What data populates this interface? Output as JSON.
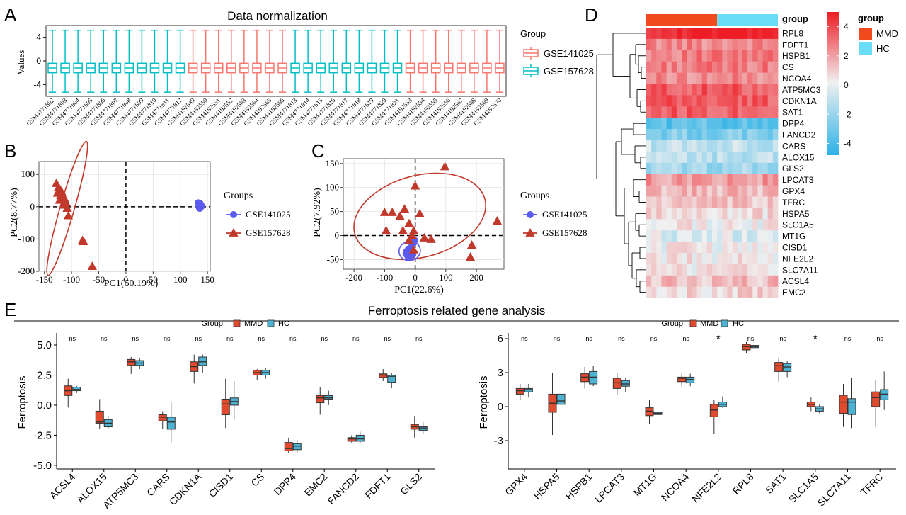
{
  "panel_labels": [
    "A",
    "B",
    "C",
    "D",
    "E"
  ],
  "colors": {
    "gse141025": "#F8766D",
    "gse157628": "#00BFC4",
    "mmd": "#E04A2E",
    "hc": "#4EB3D3",
    "pca_blue": "#5B5BF0",
    "pca_red": "#C0392B",
    "heat_high": "#EE1C25",
    "heat_mid": "#F0F0F0",
    "heat_low": "#2DB2E6",
    "mmd_bar": "#F14A1E",
    "hc_bar": "#6ADCF5"
  },
  "chart_data": [
    {
      "id": "A",
      "type": "boxplot",
      "title": "Data normalization",
      "ylabel": "Values",
      "yticks": [
        "4",
        "0",
        "-4"
      ],
      "ylim": [
        -6,
        6
      ],
      "legend_title": "Group",
      "legend": [
        "GSE141025",
        "GSE157628"
      ],
      "box": {
        "lower_whisker": -5.3,
        "q1": -2.0,
        "median": -1.2,
        "q3": -0.4,
        "upper_whisker": 5.2
      },
      "categories": [
        "GSM4771802",
        "GSM4771803",
        "GSM4771804",
        "GSM4771805",
        "GSM4771806",
        "GSM4771807",
        "GSM4771808",
        "GSM4771809",
        "GSM4771810",
        "GSM4771811",
        "GSM4771812",
        "GSM4192549",
        "GSM4192550",
        "GSM4192551",
        "GSM4192552",
        "GSM4192563",
        "GSM4192564",
        "GSM4192565",
        "GSM4192566",
        "GSM4771813",
        "GSM4771814",
        "GSM4771815",
        "GSM4771816",
        "GSM4771817",
        "GSM4771818",
        "GSM4771819",
        "GSM4771820",
        "GSM4771821",
        "GSM4192553",
        "GSM4192554",
        "GSM4192555",
        "GSM4192556",
        "GSM4192567",
        "GSM4192568",
        "GSM4192569",
        "GSM4192570"
      ],
      "groups": [
        "GSE157628",
        "GSE157628",
        "GSE157628",
        "GSE157628",
        "GSE157628",
        "GSE157628",
        "GSE157628",
        "GSE157628",
        "GSE157628",
        "GSE157628",
        "GSE157628",
        "GSE141025",
        "GSE141025",
        "GSE141025",
        "GSE141025",
        "GSE141025",
        "GSE141025",
        "GSE141025",
        "GSE141025",
        "GSE157628",
        "GSE157628",
        "GSE157628",
        "GSE157628",
        "GSE157628",
        "GSE157628",
        "GSE157628",
        "GSE157628",
        "GSE157628",
        "GSE141025",
        "GSE141025",
        "GSE141025",
        "GSE141025",
        "GSE141025",
        "GSE141025",
        "GSE141025",
        "GSE141025"
      ]
    },
    {
      "id": "B",
      "type": "scatter",
      "xlabel": "PC1(60.19%)",
      "ylabel": "PC2(8.77%)",
      "xlim": [
        -160,
        155
      ],
      "ylim": [
        -200,
        140
      ],
      "xticks": [
        -150,
        -100,
        -50,
        0,
        50,
        100,
        150
      ],
      "yticks": [
        100,
        0,
        -100,
        -200
      ],
      "legend_title": "Groups",
      "legend": [
        "GSE141025",
        "GSE157628"
      ],
      "series": [
        {
          "name": "GSE141025",
          "x": [
            134,
            136,
            138,
            135,
            137,
            139,
            133,
            136
          ],
          "y": [
            10,
            5,
            0,
            -3,
            8,
            2,
            12,
            -5
          ]
        },
        {
          "name": "GSE157628",
          "x": [
            -128,
            -124,
            -120,
            -126,
            -118,
            -116,
            -112,
            -122,
            -110,
            -114,
            -108,
            -106,
            -120,
            -115,
            -80,
            -78,
            -62
          ],
          "y": [
            72,
            60,
            50,
            42,
            45,
            32,
            22,
            20,
            12,
            5,
            -5,
            -28,
            35,
            28,
            -105,
            -108,
            -185
          ]
        }
      ],
      "ellipses": [
        {
          "series": "GSE157628",
          "cx": -108,
          "cy": -5,
          "rx": 128,
          "ry": 22,
          "angle": -74
        },
        {
          "series": "GSE141025",
          "cx": 136,
          "cy": 3,
          "rx": 7,
          "ry": 16,
          "angle": 0
        }
      ]
    },
    {
      "id": "C",
      "type": "scatter",
      "xlabel": "PC1(22.6%)",
      "ylabel": "PC2(7.92%)",
      "xlim": [
        -235,
        290
      ],
      "ylim": [
        -70,
        160
      ],
      "xticks": [
        -200,
        -100,
        0,
        100,
        200
      ],
      "yticks": [
        150,
        100,
        50,
        0,
        -50
      ],
      "legend_title": "Groups",
      "legend": [
        "GSE141025",
        "GSE157628"
      ],
      "series": [
        {
          "name": "GSE141025",
          "x": [
            -28,
            -22,
            -18,
            -12,
            -8,
            -25,
            -15,
            -20,
            -5,
            -30,
            -10,
            -2
          ],
          "y": [
            -33,
            -28,
            -37,
            -30,
            -40,
            -42,
            -25,
            -45,
            -15,
            -38,
            -32,
            -10
          ]
        },
        {
          "name": "GSE157628",
          "x": [
            97,
            0,
            -100,
            -75,
            -50,
            -35,
            -20,
            15,
            -5,
            -95,
            -10,
            -40,
            30,
            52,
            185,
            180,
            268,
            -20,
            -5
          ],
          "y": [
            143,
            103,
            48,
            48,
            40,
            55,
            25,
            45,
            10,
            10,
            0,
            10,
            -5,
            -8,
            -20,
            -45,
            30,
            -10,
            -30
          ]
        }
      ],
      "ellipses": [
        {
          "series": "GSE157628",
          "cx": 15,
          "cy": 40,
          "rx": 220,
          "ry": 85,
          "angle": -15
        },
        {
          "series": "GSE141025",
          "cx": -18,
          "cy": -32,
          "rx": 35,
          "ry": 20,
          "angle": -10
        }
      ]
    },
    {
      "id": "D",
      "type": "heatmap",
      "annotation_title": "group",
      "legend_title": "group",
      "groups": [
        "MMD",
        "HC"
      ],
      "color_scale": {
        "ticks": [
          "4",
          "2",
          "0",
          "-2",
          "-4"
        ],
        "range": [
          -4.8,
          5
        ]
      },
      "rows": [
        "RPL8",
        "FDFT1",
        "HSPB1",
        "CS",
        "NCOA4",
        "ATP5MC3",
        "CDKN1A",
        "SAT1",
        "DPP4",
        "FANCD2",
        "CARS",
        "ALOX15",
        "GLS2",
        "LPCAT3",
        "GPX4",
        "TFRC",
        "HSPA5",
        "SLC1A5",
        "MT1G",
        "CISD1",
        "NFE2L2",
        "SLC7A11",
        "ACSL4",
        "EMC2"
      ],
      "row_means": [
        5.0,
        2.5,
        2.7,
        2.7,
        2.4,
        3.5,
        3.5,
        3.5,
        -3.6,
        -2.7,
        -1.1,
        -1.4,
        -1.9,
        2.0,
        1.3,
        0.9,
        0.5,
        0.1,
        -0.5,
        0.1,
        0.2,
        0.3,
        1.2,
        0.6
      ],
      "columns": {
        "MMD": 14,
        "HC": 12
      }
    },
    {
      "id": "E",
      "type": "boxplot",
      "title": "Ferroptosis related gene analysis",
      "ylabel": "Ferroptosis",
      "legend_title": "Group",
      "legend": [
        "MMD",
        "HC"
      ],
      "panels": [
        {
          "ylim": [
            -5.3,
            6.0
          ],
          "yticks": [
            "5.0",
            "2.5",
            "0.0",
            "-2.5",
            "-5.0"
          ],
          "categories": [
            "ACSL4",
            "ALOX15",
            "ATP5MC3",
            "CARS",
            "CDKN1A",
            "CISD1",
            "CS",
            "DPP4",
            "EMC2",
            "FANCD2",
            "FDFT1",
            "GLS2"
          ],
          "significance": [
            "ns",
            "ns",
            "ns",
            "ns",
            "ns",
            "ns",
            "ns",
            "ns",
            "ns",
            "ns",
            "ns",
            "ns"
          ],
          "series": [
            {
              "name": "MMD",
              "boxes": [
                [
                  -0.2,
                  0.8,
                  1.2,
                  1.6,
                  2.2
                ],
                [
                  -2.0,
                  -1.5,
                  -1.4,
                  -0.5,
                  0.5
                ],
                [
                  2.6,
                  3.3,
                  3.6,
                  3.8,
                  4.0
                ],
                [
                  -2.0,
                  -1.3,
                  -1.0,
                  -0.8,
                  -0.5
                ],
                [
                  1.8,
                  2.8,
                  3.2,
                  3.6,
                  4.2
                ],
                [
                  -1.9,
                  -0.8,
                  0.1,
                  0.5,
                  2.2
                ],
                [
                  2.1,
                  2.5,
                  2.7,
                  2.9,
                  3.0
                ],
                [
                  -4.0,
                  -3.8,
                  -3.6,
                  -3.1,
                  -2.7
                ],
                [
                  -0.8,
                  0.2,
                  0.6,
                  0.8,
                  1.5
                ],
                [
                  -3.1,
                  -3.0,
                  -2.8,
                  -2.7,
                  -2.5
                ],
                [
                  2.0,
                  2.3,
                  2.5,
                  2.6,
                  3.0
                ],
                [
                  -2.7,
                  -2.0,
                  -1.8,
                  -1.6,
                  -0.9
                ]
              ]
            },
            {
              "name": "HC",
              "boxes": [
                [
                  1.0,
                  1.2,
                  1.3,
                  1.5,
                  1.6
                ],
                [
                  -2.0,
                  -1.8,
                  -1.5,
                  -1.2,
                  -0.9
                ],
                [
                  3.0,
                  3.3,
                  3.5,
                  3.7,
                  3.9
                ],
                [
                  -3.1,
                  -2.0,
                  -1.4,
                  -1.0,
                  0.3
                ],
                [
                  2.7,
                  3.3,
                  3.6,
                  4.0,
                  4.2
                ],
                [
                  -1.2,
                  0.0,
                  0.3,
                  0.6,
                  2.0
                ],
                [
                  2.2,
                  2.5,
                  2.7,
                  2.9,
                  3.1
                ],
                [
                  -4.0,
                  -3.7,
                  -3.4,
                  -3.2,
                  -2.9
                ],
                [
                  0.0,
                  0.5,
                  0.6,
                  0.8,
                  1.2
                ],
                [
                  -3.2,
                  -3.0,
                  -2.8,
                  -2.5,
                  -2.2
                ],
                [
                  1.4,
                  1.9,
                  2.4,
                  2.5,
                  2.7
                ],
                [
                  -2.4,
                  -2.1,
                  -1.9,
                  -1.8,
                  -1.4
                ]
              ]
            }
          ]
        },
        {
          "ylim": [
            -5.5,
            6.5
          ],
          "yticks": [
            "6",
            "3",
            "0",
            "-3"
          ],
          "categories": [
            "GPX4",
            "HSPA5",
            "HSPB1",
            "LPCAT3",
            "MT1G",
            "NCOA4",
            "NFE2L2",
            "RPL8",
            "SAT1",
            "SLC1A5",
            "SLC7A11",
            "TFRC"
          ],
          "significance": [
            "ns",
            "ns",
            "ns",
            "ns",
            "ns",
            "ns",
            "*",
            "ns",
            "ns",
            "*",
            "ns",
            "ns"
          ],
          "series": [
            {
              "name": "MMD",
              "boxes": [
                [
                  0.6,
                  1.1,
                  1.4,
                  1.6,
                  2.0
                ],
                [
                  -2.5,
                  -0.5,
                  0.3,
                  1.1,
                  3.0
                ],
                [
                  1.6,
                  2.2,
                  2.6,
                  2.9,
                  3.5
                ],
                [
                  1.0,
                  1.6,
                  2.1,
                  2.5,
                  3.0
                ],
                [
                  -1.5,
                  -0.8,
                  -0.4,
                  -0.1,
                  0.6
                ],
                [
                  1.8,
                  2.2,
                  2.5,
                  2.6,
                  2.9
                ],
                [
                  -2.4,
                  -0.9,
                  -0.3,
                  0.2,
                  0.6
                ],
                [
                  4.7,
                  5.0,
                  5.3,
                  5.5,
                  5.7
                ],
                [
                  2.2,
                  3.1,
                  3.6,
                  3.9,
                  4.3
                ],
                [
                  -0.4,
                  0.0,
                  0.2,
                  0.4,
                  0.8
                ],
                [
                  -1.8,
                  -0.6,
                  0.4,
                  1.0,
                  2.0
                ],
                [
                  -1.8,
                  0.0,
                  0.8,
                  1.3,
                  2.4
                ]
              ]
            },
            {
              "name": "HC",
              "boxes": [
                [
                  0.8,
                  1.3,
                  1.5,
                  1.6,
                  2.0
                ],
                [
                  -0.6,
                  0.2,
                  0.5,
                  1.1,
                  2.4
                ],
                [
                  1.8,
                  2.0,
                  2.6,
                  3.1,
                  3.6
                ],
                [
                  1.3,
                  1.8,
                  2.0,
                  2.3,
                  2.5
                ],
                [
                  -0.9,
                  -0.7,
                  -0.6,
                  -0.5,
                  -0.3
                ],
                [
                  1.8,
                  2.1,
                  2.4,
                  2.6,
                  2.9
                ],
                [
                  -0.1,
                  0.0,
                  0.2,
                  0.4,
                  0.9
                ],
                [
                  5.1,
                  5.2,
                  5.3,
                  5.4,
                  5.5
                ],
                [
                  2.6,
                  3.1,
                  3.5,
                  3.8,
                  4.0
                ],
                [
                  -0.6,
                  -0.4,
                  -0.2,
                  0.0,
                  0.2
                ],
                [
                  -1.9,
                  -0.7,
                  0.4,
                  0.7,
                  2.5
                ],
                [
                  -0.3,
                  0.6,
                  1.1,
                  1.5,
                  3.1
                ]
              ]
            }
          ]
        }
      ]
    }
  ]
}
